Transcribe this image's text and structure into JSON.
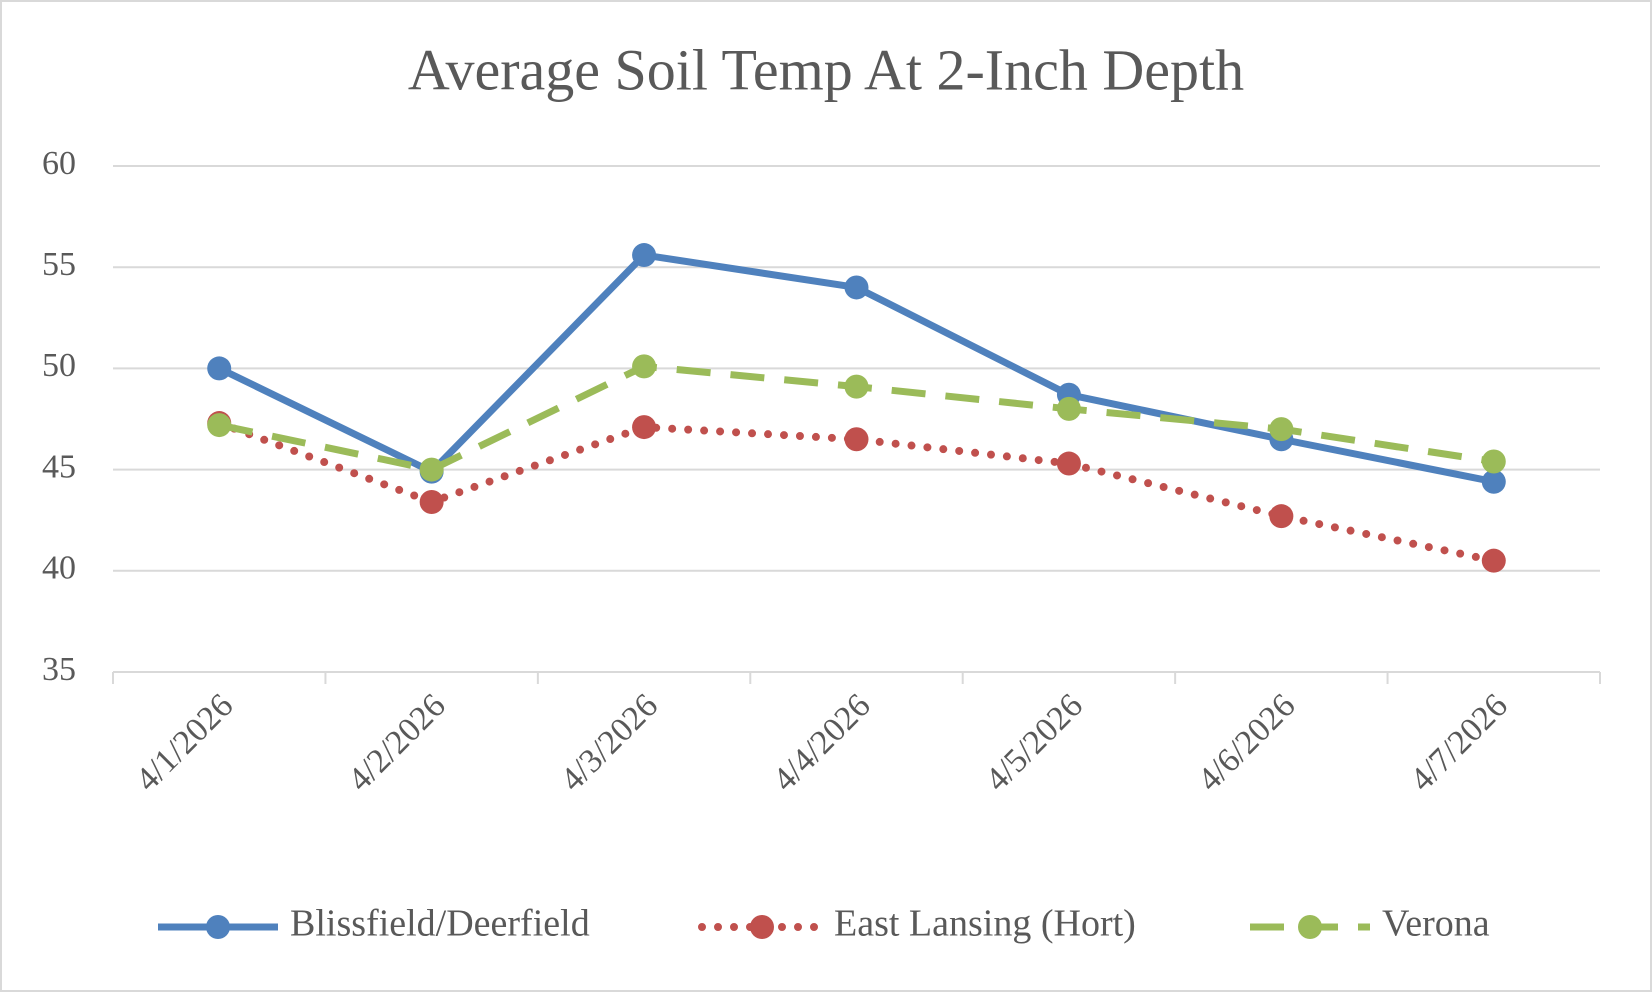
{
  "chart_data": {
    "type": "line",
    "title": "Average Soil Temp At 2-Inch Depth",
    "x": [
      "4/1/2026",
      "4/2/2026",
      "4/3/2026",
      "4/4/2026",
      "4/5/2026",
      "4/6/2026",
      "4/7/2026"
    ],
    "series": [
      {
        "name": "Blissfield/Deerfield",
        "color": "#4f81bd",
        "dash": "solid",
        "values": [
          50.0,
          44.9,
          55.6,
          54.0,
          48.7,
          46.5,
          44.4
        ]
      },
      {
        "name": "East Lansing (Hort)",
        "color": "#c0504d",
        "dash": "dotted",
        "values": [
          47.3,
          43.4,
          47.1,
          46.5,
          45.3,
          42.7,
          40.5
        ]
      },
      {
        "name": "Verona",
        "color": "#9bbb59",
        "dash": "dashed",
        "values": [
          47.2,
          45.0,
          50.1,
          49.1,
          48.0,
          47.0,
          45.4
        ]
      }
    ],
    "ylim": [
      35,
      60
    ],
    "yticks": [
      35,
      40,
      45,
      50,
      55,
      60
    ],
    "grid": true,
    "legend": "bottom"
  }
}
